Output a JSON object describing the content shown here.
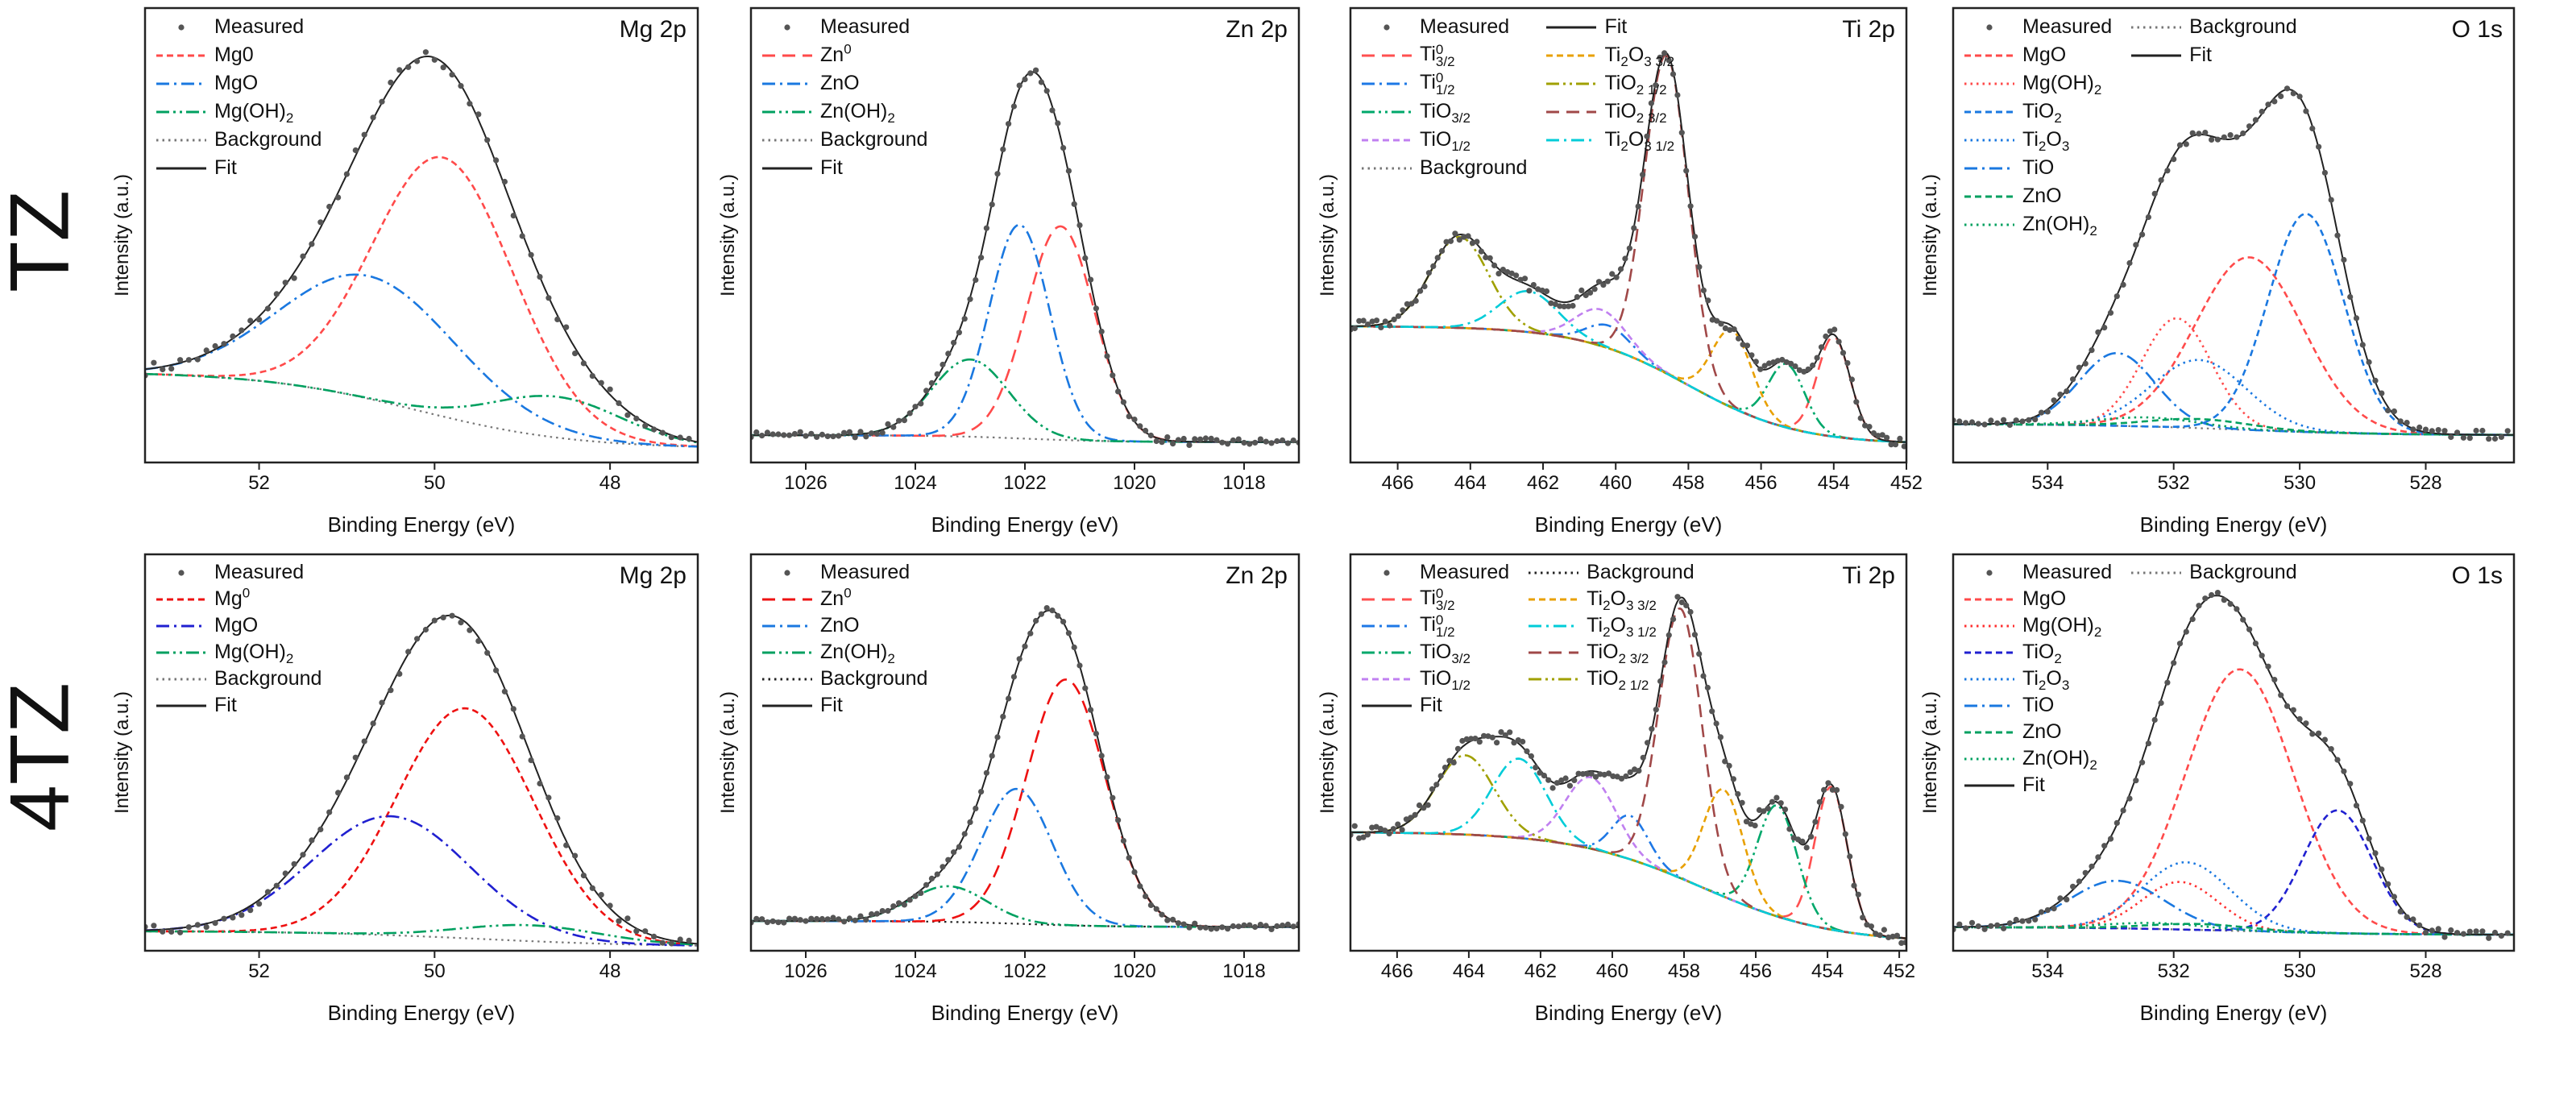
{
  "row_labels": [
    "TZ",
    "4TZ"
  ],
  "chart_data": [
    {
      "type": "line",
      "title": "Mg 2p",
      "sample": "TZ",
      "xlabel": "Binding Energy (eV)",
      "ylabel": "Intensity (a.u.)",
      "xlim": [
        53.3,
        47.0
      ],
      "ylim": [
        0,
        1
      ],
      "xticks": [
        52,
        50,
        48
      ],
      "grid": false,
      "legend_position": "top-left",
      "legend_columns": 1,
      "legend": [
        "measured",
        "c0",
        "c1",
        "c2",
        "background",
        "fit"
      ],
      "measured": {
        "label": "Measured",
        "color": "#555555",
        "step": 0.1,
        "noise": 0.014
      },
      "fit": {
        "label": "Fit",
        "color": "#222222"
      },
      "background": {
        "label": "Background",
        "color": "#777777",
        "style": "dot",
        "high": 0.2,
        "low": 0.03,
        "center": 50.2,
        "width": 0.9
      },
      "components": [
        {
          "id": "c0",
          "label": "Mg0",
          "color": "#ff4a4a",
          "style": "shortdash",
          "center": 49.9,
          "sigma": 0.8,
          "height": 0.57
        },
        {
          "id": "c1",
          "label": "MgO",
          "color": "#1a78e0",
          "style": "dashdot",
          "center": 50.75,
          "sigma": 1.0,
          "height": 0.27
        },
        {
          "id": "c2",
          "label": "Mg(OH)_{2}",
          "color": "#00a060",
          "style": "dashdotdot",
          "center": 48.6,
          "sigma": 0.75,
          "height": 0.09
        }
      ]
    },
    {
      "type": "line",
      "title": "Zn 2p",
      "sample": "TZ",
      "xlabel": "Binding Energy (eV)",
      "ylabel": "Intensity (a.u.)",
      "xlim": [
        1027.0,
        1017.0
      ],
      "ylim": [
        0,
        1
      ],
      "xticks": [
        1026,
        1024,
        1022,
        1020,
        1018
      ],
      "grid": false,
      "legend_position": "top-left",
      "legend_columns": 1,
      "legend": [
        "measured",
        "c0",
        "c1",
        "c2",
        "background",
        "fit"
      ],
      "measured": {
        "label": "Measured",
        "color": "#555555",
        "step": 0.1,
        "noise": 0.008
      },
      "fit": {
        "label": "Fit",
        "color": "#222222"
      },
      "background": {
        "label": "Background",
        "color": "#777777",
        "style": "dot",
        "high": 0.06,
        "low": 0.045,
        "center": 1022,
        "width": 0.8
      },
      "components": [
        {
          "id": "c0",
          "label": "Zn^{0}",
          "color": "#ff4a4a",
          "style": "dash",
          "center": 1021.35,
          "sigma": 0.62,
          "height": 0.47
        },
        {
          "id": "c1",
          "label": "ZnO",
          "color": "#1a78e0",
          "style": "dashdot",
          "center": 1022.1,
          "sigma": 0.55,
          "height": 0.47
        },
        {
          "id": "c2",
          "label": "Zn(OH)_{2}",
          "color": "#00a060",
          "style": "dashdotdot",
          "center": 1023.0,
          "sigma": 0.7,
          "height": 0.17
        }
      ]
    },
    {
      "type": "line",
      "title": "Ti 2p",
      "sample": "TZ",
      "xlabel": "Binding Energy (eV)",
      "ylabel": "Intensity (a.u.)",
      "xlim": [
        467.3,
        452.0
      ],
      "ylim": [
        0,
        1
      ],
      "xticks": [
        466,
        464,
        462,
        460,
        458,
        456,
        454,
        452
      ],
      "grid": false,
      "legend_position": "top-left",
      "legend_columns": 2,
      "legend": [
        "measured",
        "fit",
        "c0",
        "c4",
        "c1",
        "c5",
        "c2",
        "c6",
        "c3",
        "c7",
        "background",
        null
      ],
      "measured": {
        "label": "Measured",
        "color": "#555555",
        "step": 0.12,
        "noise": 0.012
      },
      "fit": {
        "label": "Fit",
        "color": "#222222"
      },
      "background": {
        "label": "Background",
        "color": "#777777",
        "style": "dot",
        "high": 0.3,
        "low": 0.04,
        "center": 458.0,
        "width": 1.5
      },
      "components": [
        {
          "id": "c0",
          "label": "Ti^{0}_{3/2}",
          "color": "#ff5050",
          "style": "dash",
          "center": 454.0,
          "sigma": 0.45,
          "height": 0.22
        },
        {
          "id": "c1",
          "label": "Ti^{0}_{1/2}",
          "color": "#1e78e6",
          "style": "dashdot",
          "center": 460.2,
          "sigma": 0.6,
          "height": 0.05
        },
        {
          "id": "c2",
          "label": "TiO_{3/2}",
          "color": "#00a86b",
          "style": "dashdotdot",
          "center": 455.3,
          "sigma": 0.5,
          "height": 0.14
        },
        {
          "id": "c3",
          "label": "TiO_{1/2}",
          "color": "#c080f0",
          "style": "shortdash",
          "center": 460.4,
          "sigma": 0.7,
          "height": 0.08
        },
        {
          "id": "c4",
          "label": "Ti_{2}O_{3 3/2}",
          "color": "#e8a000",
          "style": "shortdash",
          "center": 456.8,
          "sigma": 0.55,
          "height": 0.17
        },
        {
          "id": "c5",
          "label": "TiO_{2 1/2}",
          "color": "#a0a000",
          "style": "dashdotdot",
          "center": 464.3,
          "sigma": 0.8,
          "height": 0.2
        },
        {
          "id": "c6",
          "label": "TiO_{2 3/2}",
          "color": "#a04848",
          "style": "dash",
          "center": 458.6,
          "sigma": 0.6,
          "height": 0.7
        },
        {
          "id": "c7",
          "label": "Ti_{2}O_{3 1/2}",
          "color": "#00ccd8",
          "style": "dashdot",
          "center": 462.4,
          "sigma": 0.8,
          "height": 0.09
        }
      ]
    },
    {
      "type": "line",
      "title": "O 1s",
      "sample": "TZ",
      "xlabel": "Binding Energy (eV)",
      "ylabel": "Intensity (a.u.)",
      "xlim": [
        535.5,
        526.6
      ],
      "ylim": [
        0,
        1
      ],
      "xticks": [
        534,
        532,
        530,
        528
      ],
      "grid": false,
      "legend_position": "top-left",
      "legend_columns": 2,
      "legend": [
        "measured",
        "background",
        "c0",
        "fit",
        "c1",
        null,
        "c2",
        null,
        "c3",
        null,
        "c4",
        null,
        "c5",
        null,
        "c6",
        null
      ],
      "measured": {
        "label": "Measured",
        "color": "#555555",
        "step": 0.1,
        "noise": 0.01
      },
      "fit": {
        "label": "Fit",
        "color": "#222222"
      },
      "background": {
        "label": "Background",
        "color": "#777777",
        "style": "dot",
        "high": 0.085,
        "low": 0.06,
        "center": 531,
        "width": 1.2
      },
      "components": [
        {
          "id": "c0",
          "label": "MgO",
          "color": "#ff4a4a",
          "style": "shortdash",
          "center": 530.8,
          "sigma": 0.85,
          "height": 0.38
        },
        {
          "id": "c1",
          "label": "Mg(OH)_{2}",
          "color": "#ff4a4a",
          "style": "dot",
          "center": 531.95,
          "sigma": 0.55,
          "height": 0.24
        },
        {
          "id": "c2",
          "label": "TiO_{2}",
          "color": "#1a78e0",
          "style": "shortdash",
          "center": 529.9,
          "sigma": 0.6,
          "height": 0.48
        },
        {
          "id": "c3",
          "label": "Ti_{2}O_{3}",
          "color": "#1a78e0",
          "style": "dot",
          "center": 531.6,
          "sigma": 0.75,
          "height": 0.15
        },
        {
          "id": "c4",
          "label": "TiO",
          "color": "#1a78e0",
          "style": "dashdot",
          "center": 532.9,
          "sigma": 0.6,
          "height": 0.16
        },
        {
          "id": "c5",
          "label": "ZnO",
          "color": "#00a060",
          "style": "shortdash",
          "center": 531.6,
          "sigma": 0.8,
          "height": 0.02
        },
        {
          "id": "c6",
          "label": "Zn(OH)_{2}",
          "color": "#00a060",
          "style": "dot",
          "center": 532.4,
          "sigma": 0.8,
          "height": 0.02
        }
      ]
    },
    {
      "type": "line",
      "title": "Mg 2p",
      "sample": "4TZ",
      "xlabel": "Binding Energy (eV)",
      "ylabel": "Intensity (a.u.)",
      "xlim": [
        53.3,
        47.0
      ],
      "ylim": [
        0,
        1
      ],
      "xticks": [
        52,
        50,
        48
      ],
      "grid": false,
      "legend_position": "top-left",
      "legend_columns": 1,
      "legend": [
        "measured",
        "c0",
        "c1",
        "c2",
        "background",
        "fit"
      ],
      "measured": {
        "label": "Measured",
        "color": "#555555",
        "step": 0.1,
        "noise": 0.012
      },
      "fit": {
        "label": "Fit",
        "color": "#222222"
      },
      "background": {
        "label": "Background",
        "color": "#777777",
        "style": "dot",
        "high": 0.05,
        "low": 0.01,
        "center": 49.5,
        "width": 1.0
      },
      "components": [
        {
          "id": "c0",
          "label": "Mg^{0}",
          "color": "#ee1111",
          "style": "shortdash",
          "center": 49.65,
          "sigma": 0.78,
          "height": 0.58
        },
        {
          "id": "c1",
          "label": "MgO",
          "color": "#2020d0",
          "style": "dashdot",
          "center": 50.5,
          "sigma": 0.9,
          "height": 0.3
        },
        {
          "id": "c2",
          "label": "Mg(OH)_{2}",
          "color": "#00a060",
          "style": "dashdotdot",
          "center": 48.9,
          "sigma": 0.8,
          "height": 0.04
        }
      ]
    },
    {
      "type": "line",
      "title": "Zn 2p",
      "sample": "4TZ",
      "xlabel": "Binding Energy (eV)",
      "ylabel": "Intensity (a.u.)",
      "xlim": [
        1027.0,
        1017.0
      ],
      "ylim": [
        0,
        1
      ],
      "xticks": [
        1026,
        1024,
        1022,
        1020,
        1018
      ],
      "grid": false,
      "legend_position": "top-left",
      "legend_columns": 1,
      "legend": [
        "measured",
        "c0",
        "c1",
        "c2",
        "background",
        "fit"
      ],
      "measured": {
        "label": "Measured",
        "color": "#555555",
        "step": 0.1,
        "noise": 0.008
      },
      "fit": {
        "label": "Fit",
        "color": "#222222"
      },
      "background": {
        "label": "Background",
        "color": "#222222",
        "style": "dot",
        "high": 0.075,
        "low": 0.06,
        "center": 1022,
        "width": 0.8
      },
      "components": [
        {
          "id": "c0",
          "label": "Zn^{0}",
          "color": "#ee1111",
          "style": "dash",
          "center": 1021.25,
          "sigma": 0.72,
          "height": 0.62
        },
        {
          "id": "c1",
          "label": "ZnO",
          "color": "#1a78e0",
          "style": "dashdot",
          "center": 1022.15,
          "sigma": 0.65,
          "height": 0.34
        },
        {
          "id": "c2",
          "label": "Zn(OH)_{2}",
          "color": "#00a060",
          "style": "dashdotdot",
          "center": 1023.4,
          "sigma": 0.7,
          "height": 0.09
        }
      ]
    },
    {
      "type": "line",
      "title": "Ti 2p",
      "sample": "4TZ",
      "xlabel": "Binding Energy (eV)",
      "ylabel": "Intensity (a.u.)",
      "xlim": [
        467.3,
        451.8
      ],
      "ylim": [
        0,
        1
      ],
      "xticks": [
        466,
        464,
        462,
        460,
        458,
        456,
        454,
        452
      ],
      "grid": false,
      "legend_position": "top-left",
      "legend_columns": 2,
      "legend": [
        "measured",
        "background",
        "c0",
        "c4",
        "c1",
        "c7",
        "c2",
        "c6",
        "c3",
        "c5",
        "fit",
        null
      ],
      "measured": {
        "label": "Measured",
        "color": "#555555",
        "step": 0.12,
        "noise": 0.016
      },
      "fit": {
        "label": "Fit",
        "color": "#222222"
      },
      "background": {
        "label": "Background",
        "color": "#222222",
        "style": "dot",
        "high": 0.3,
        "low": 0.02,
        "center": 457.5,
        "width": 1.8
      },
      "components": [
        {
          "id": "c0",
          "label": "Ti^{0}_{3/2}",
          "color": "#ff5050",
          "style": "dash",
          "center": 453.9,
          "sigma": 0.45,
          "height": 0.36
        },
        {
          "id": "c1",
          "label": "Ti^{0}_{1/2}",
          "color": "#1e78e6",
          "style": "dashdot",
          "center": 459.5,
          "sigma": 0.5,
          "height": 0.11
        },
        {
          "id": "c2",
          "label": "TiO_{3/2}",
          "color": "#00a86b",
          "style": "dashdotdot",
          "center": 455.4,
          "sigma": 0.55,
          "height": 0.28
        },
        {
          "id": "c3",
          "label": "TiO_{1/2}",
          "color": "#c080f0",
          "style": "shortdash",
          "center": 460.6,
          "sigma": 0.7,
          "height": 0.18
        },
        {
          "id": "c4",
          "label": "Ti_{2}O_{3 3/2}",
          "color": "#e8a000",
          "style": "shortdash",
          "center": 456.9,
          "sigma": 0.55,
          "height": 0.27
        },
        {
          "id": "c5",
          "label": "TiO_{2 1/2}",
          "color": "#a0a000",
          "style": "dashdotdot",
          "center": 464.1,
          "sigma": 0.8,
          "height": 0.2
        },
        {
          "id": "c6",
          "label": "TiO_{2 3/2}",
          "color": "#a04848",
          "style": "dash",
          "center": 458.1,
          "sigma": 0.6,
          "height": 0.68
        },
        {
          "id": "c7",
          "label": "Ti_{2}O_{3 1/2}",
          "color": "#00ccd8",
          "style": "dashdot",
          "center": 462.6,
          "sigma": 0.75,
          "height": 0.2
        }
      ]
    },
    {
      "type": "line",
      "title": "O 1s",
      "sample": "4TZ",
      "xlabel": "Binding Energy (eV)",
      "ylabel": "Intensity (a.u.)",
      "xlim": [
        535.5,
        526.6
      ],
      "ylim": [
        0,
        1
      ],
      "xticks": [
        534,
        532,
        530,
        528
      ],
      "grid": false,
      "legend_position": "top-left",
      "legend_columns": 2,
      "legend": [
        "measured",
        "background",
        "c0",
        null,
        "c1",
        null,
        "c2",
        null,
        "c3",
        null,
        "c4",
        null,
        "c5",
        null,
        "c6",
        null,
        "fit",
        null
      ],
      "measured": {
        "label": "Measured",
        "color": "#555555",
        "step": 0.1,
        "noise": 0.01
      },
      "fit": {
        "label": "Fit",
        "color": "#222222"
      },
      "background": {
        "label": "Background",
        "color": "#777777",
        "style": "dot",
        "high": 0.06,
        "low": 0.04,
        "center": 531,
        "width": 1.2
      },
      "components": [
        {
          "id": "c0",
          "label": "MgO",
          "color": "#ff4a4a",
          "style": "shortdash",
          "center": 530.95,
          "sigma": 0.85,
          "height": 0.66
        },
        {
          "id": "c1",
          "label": "Mg(OH)_{2}",
          "color": "#ff3030",
          "style": "dot",
          "center": 531.9,
          "sigma": 0.6,
          "height": 0.12
        },
        {
          "id": "c2",
          "label": "TiO_{2}",
          "color": "#2020d0",
          "style": "shortdash",
          "center": 529.4,
          "sigma": 0.55,
          "height": 0.31
        },
        {
          "id": "c3",
          "label": "Ti_{2}O_{3}",
          "color": "#1a78e0",
          "style": "dot",
          "center": 531.8,
          "sigma": 0.7,
          "height": 0.17
        },
        {
          "id": "c4",
          "label": "TiO",
          "color": "#1a78e0",
          "style": "dashdot",
          "center": 532.9,
          "sigma": 0.75,
          "height": 0.12
        },
        {
          "id": "c5",
          "label": "ZnO",
          "color": "#00a060",
          "style": "shortdash",
          "center": 531.6,
          "sigma": 0.8,
          "height": 0.015
        },
        {
          "id": "c6",
          "label": "Zn(OH)_{2}",
          "color": "#00a060",
          "style": "dot",
          "center": 532.3,
          "sigma": 0.8,
          "height": 0.015
        }
      ]
    }
  ]
}
